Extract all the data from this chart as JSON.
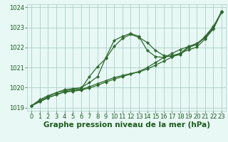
{
  "xlabel": "Graphe pression niveau de la mer (hPa)",
  "x": [
    0,
    1,
    2,
    3,
    4,
    5,
    6,
    7,
    8,
    9,
    10,
    11,
    12,
    13,
    14,
    15,
    16,
    17,
    18,
    19,
    20,
    21,
    22,
    23
  ],
  "series": [
    [
      1019.1,
      1019.4,
      1019.6,
      1019.75,
      1019.85,
      1019.9,
      1019.95,
      1020.55,
      1021.05,
      1021.45,
      1022.05,
      1022.45,
      1022.65,
      1022.5,
      1022.25,
      1021.85,
      1021.6,
      1021.55,
      1021.65,
      1022.0,
      1022.15,
      1022.55,
      1023.05,
      1023.75
    ],
    [
      1019.1,
      1019.35,
      1019.55,
      1019.75,
      1019.9,
      1019.95,
      1020.0,
      1020.25,
      1020.55,
      1021.5,
      1022.35,
      1022.55,
      1022.7,
      1022.55,
      1021.85,
      1021.55,
      1021.5,
      1021.6,
      1021.7,
      1022.05,
      1022.2,
      1022.5,
      1022.95,
      1023.8
    ],
    [
      1019.1,
      1019.3,
      1019.5,
      1019.65,
      1019.8,
      1019.85,
      1019.9,
      1020.05,
      1020.2,
      1020.35,
      1020.5,
      1020.6,
      1020.7,
      1020.8,
      1021.0,
      1021.25,
      1021.5,
      1021.7,
      1021.9,
      1022.05,
      1022.15,
      1022.5,
      1023.0,
      1023.8
    ],
    [
      1019.1,
      1019.3,
      1019.5,
      1019.65,
      1019.78,
      1019.82,
      1019.88,
      1019.98,
      1020.12,
      1020.28,
      1020.42,
      1020.55,
      1020.68,
      1020.78,
      1020.92,
      1021.12,
      1021.32,
      1021.52,
      1021.72,
      1021.88,
      1022.02,
      1022.42,
      1022.92,
      1023.75
    ]
  ],
  "line_color": "#2d6a2d",
  "marker": "D",
  "marker_size": 2.2,
  "bg_color": "#e8f8f5",
  "grid_color": "#a8cfc8",
  "text_color": "#1a5c1a",
  "ylim": [
    1018.85,
    1024.15
  ],
  "yticks": [
    1019,
    1020,
    1021,
    1022,
    1023,
    1024
  ],
  "xticks": [
    0,
    1,
    2,
    3,
    4,
    5,
    6,
    7,
    8,
    9,
    10,
    11,
    12,
    13,
    14,
    15,
    16,
    17,
    18,
    19,
    20,
    21,
    22,
    23
  ],
  "xlabel_fontsize": 7.5,
  "tick_fontsize": 6.0,
  "linewidth": 0.9
}
